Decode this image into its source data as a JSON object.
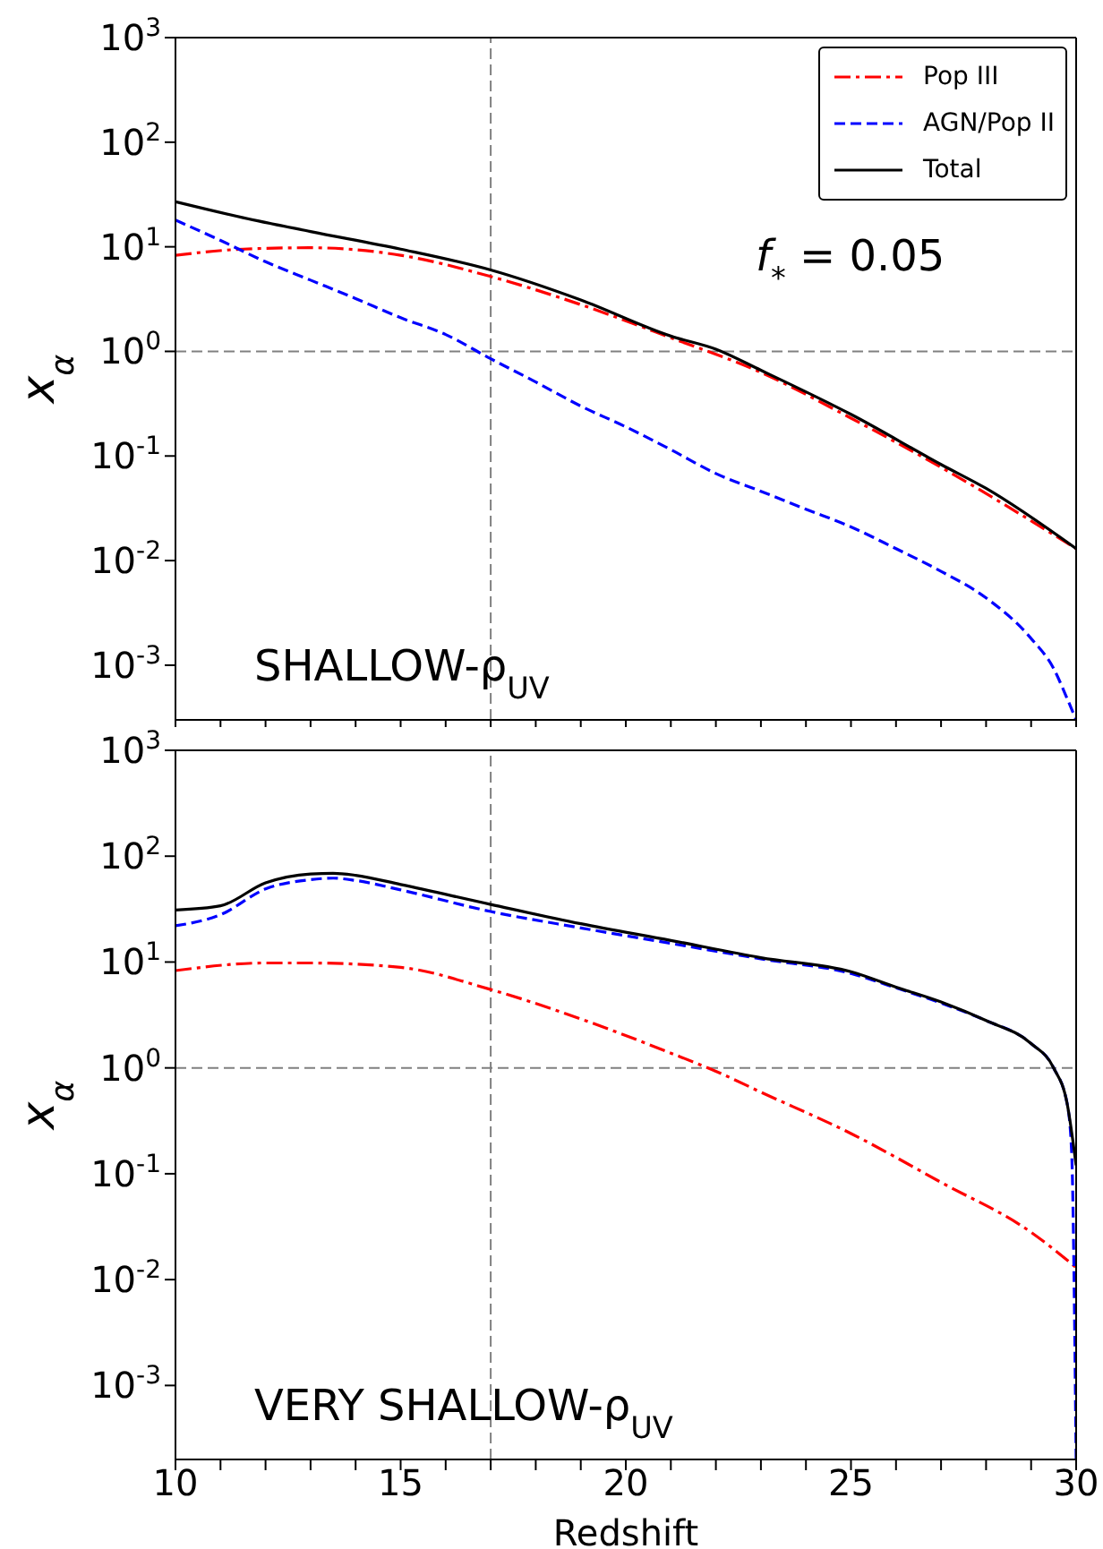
{
  "chart_data": [
    {
      "type": "line",
      "log": "y",
      "xlim": [
        10,
        30
      ],
      "ylim": [
        0.0003,
        1000
      ],
      "xticks": [
        10,
        {
          "value": 11,
          "label": null
        },
        {
          "value": 12,
          "label": null
        },
        {
          "value": 13,
          "label": null
        },
        {
          "value": 14,
          "label": null
        },
        15,
        {
          "value": 16,
          "label": null
        },
        {
          "value": 17,
          "label": null
        },
        {
          "value": 18,
          "label": null
        },
        {
          "value": 19,
          "label": null
        },
        20,
        {
          "value": 21,
          "label": null
        },
        {
          "value": 22,
          "label": null
        },
        {
          "value": 23,
          "label": null
        },
        {
          "value": 24,
          "label": null
        },
        25,
        {
          "value": 26,
          "label": null
        },
        {
          "value": 27,
          "label": null
        },
        {
          "value": 28,
          "label": null
        },
        {
          "value": 29,
          "label": null
        },
        30
      ],
      "yticks": [
        {
          "value": 0.001,
          "label": "10$^{-3}$"
        },
        {
          "value": 0.01,
          "label": "10$^{-2}$"
        },
        {
          "value": 0.1,
          "label": "10$^{-1}$"
        },
        {
          "value": 1,
          "label": "10$^{0}$"
        },
        {
          "value": 10,
          "label": "10$^{1}$"
        },
        {
          "value": 100,
          "label": "10$^{2}$"
        },
        {
          "value": 1000,
          "label": "10$^{3}$"
        }
      ],
      "tick_labels": "y",
      "ylabel": "x$_{α}$",
      "legend": "top right",
      "grid": false,
      "marker": "none",
      "annotations": [
        "f$_{*}$ = 0.05",
        "SHALLOW-ρ$_{UV}$"
      ],
      "ref_lines": [
        {
          "axis": "x",
          "value": 17,
          "color": "#808080",
          "line_style": "dashed"
        },
        {
          "axis": "y",
          "value": 1,
          "color": "#808080",
          "line_style": "dashed"
        }
      ],
      "series": [
        {
          "name": "Pop III",
          "color": "#ff0000",
          "line_style": "dashdot",
          "x": [
            10,
            11.5,
            13,
            15,
            17,
            19,
            21,
            23,
            25,
            27,
            30
          ],
          "values": [
            8.3,
            9.5,
            9.8,
            8.3,
            5.2,
            2.8,
            1.35,
            0.63,
            0.23,
            0.078,
            0.013
          ]
        },
        {
          "name": "AGN/Pop II",
          "color": "#0000ff",
          "line_style": "dashed",
          "x": [
            10,
            11,
            12,
            13,
            14,
            15,
            16,
            17,
            18,
            19,
            20,
            21,
            22,
            23,
            24,
            25,
            26,
            27,
            28,
            29,
            29.5,
            29.8,
            30
          ],
          "values": [
            18,
            11.5,
            7.2,
            4.8,
            3.2,
            2.1,
            1.45,
            0.85,
            0.51,
            0.3,
            0.19,
            0.115,
            0.068,
            0.046,
            0.031,
            0.021,
            0.013,
            0.0079,
            0.0044,
            0.0018,
            0.00093,
            0.00048,
            0.0003
          ]
        },
        {
          "name": "Total",
          "color": "#000000",
          "line_style": "solid",
          "x": [
            10,
            11.5,
            13,
            15,
            17,
            19,
            21,
            22,
            23,
            25,
            27,
            28,
            30
          ],
          "values": [
            27,
            19,
            14,
            9.5,
            6.0,
            3.1,
            1.4,
            1.05,
            0.66,
            0.25,
            0.083,
            0.049,
            0.013
          ]
        }
      ]
    },
    {
      "type": "line",
      "log": "y",
      "xlim": [
        10,
        30
      ],
      "ylim": [
        0.0002,
        1000
      ],
      "xticks": [
        10,
        {
          "value": 11,
          "label": null
        },
        {
          "value": 12,
          "label": null
        },
        {
          "value": 13,
          "label": null
        },
        {
          "value": 14,
          "label": null
        },
        15,
        {
          "value": 16,
          "label": null
        },
        {
          "value": 17,
          "label": null
        },
        {
          "value": 18,
          "label": null
        },
        {
          "value": 19,
          "label": null
        },
        20,
        {
          "value": 21,
          "label": null
        },
        {
          "value": 22,
          "label": null
        },
        {
          "value": 23,
          "label": null
        },
        {
          "value": 24,
          "label": null
        },
        25,
        {
          "value": 26,
          "label": null
        },
        {
          "value": 27,
          "label": null
        },
        {
          "value": 28,
          "label": null
        },
        {
          "value": 29,
          "label": null
        },
        30
      ],
      "yticks": [
        {
          "value": 0.001,
          "label": "10$^{-3}$"
        },
        {
          "value": 0.01,
          "label": "10$^{-2}$"
        },
        {
          "value": 0.1,
          "label": "10$^{-1}$"
        },
        {
          "value": 1,
          "label": "10$^{0}$"
        },
        {
          "value": 10,
          "label": "10$^{1}$"
        },
        {
          "value": 100,
          "label": "10$^{2}$"
        },
        {
          "value": 1000,
          "label": "10$^{3}$"
        }
      ],
      "xlabel": "Redshift",
      "ylabel": "x$_{α}$",
      "grid": false,
      "marker": "none",
      "annotations": [
        "VERY SHALLOW-ρ$_{UV}$"
      ],
      "ref_lines": [
        {
          "axis": "x",
          "value": 17,
          "color": "#808080",
          "line_style": "dashed"
        },
        {
          "axis": "y",
          "value": 1,
          "color": "#808080",
          "line_style": "dashed"
        }
      ],
      "series": [
        {
          "color": "#ff0000",
          "line_style": "dashdot",
          "x": [
            10,
            12,
            13,
            15,
            17,
            19,
            21,
            22,
            23,
            25,
            27,
            29,
            30
          ],
          "values": [
            8.3,
            9.8,
            9.8,
            8.9,
            5.5,
            2.9,
            1.38,
            0.93,
            0.59,
            0.24,
            0.083,
            0.028,
            0.013
          ]
        },
        {
          "color": "#0000ff",
          "line_style": "dashed",
          "x": [
            10,
            11,
            12,
            13,
            13.5,
            14,
            15,
            17,
            19,
            21,
            23,
            25,
            26,
            27,
            28,
            29,
            29.5,
            29.8,
            29.9,
            30
          ],
          "values": [
            22,
            28,
            49,
            60,
            62,
            59,
            48,
            30,
            21,
            15,
            10.7,
            7.8,
            5.7,
            4.1,
            2.8,
            1.7,
            1.0,
            0.46,
            0.16,
            0.0002
          ]
        },
        {
          "color": "#000000",
          "line_style": "solid",
          "x": [
            10,
            11,
            12,
            13,
            13.5,
            14,
            15,
            17,
            19,
            21,
            23,
            25,
            26,
            27,
            28,
            29,
            29.5,
            29.8,
            30
          ],
          "values": [
            31,
            34,
            56,
            68,
            69,
            66,
            54,
            35,
            23,
            16,
            11,
            8.1,
            5.8,
            4.2,
            2.8,
            1.7,
            1.0,
            0.46,
            0.12
          ]
        }
      ]
    }
  ]
}
